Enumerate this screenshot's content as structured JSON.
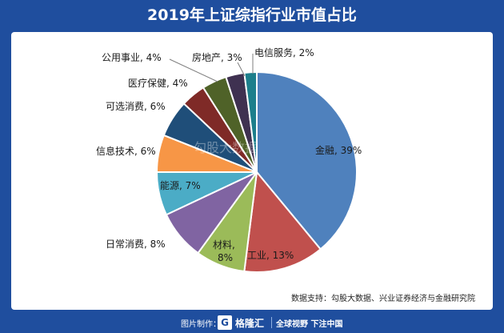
{
  "header": {
    "title": "2019年上证综指行业市值占比"
  },
  "chart_data": {
    "type": "pie",
    "title": "2019年上证综指行业市值占比",
    "slices": [
      {
        "label": "金融",
        "value": 39,
        "text": "金融, 39%",
        "color": "#4f81bd"
      },
      {
        "label": "工业",
        "value": 13,
        "text": "工业, 13%",
        "color": "#c0504d"
      },
      {
        "label": "材料",
        "value": 8,
        "text": "材料, 8%",
        "color": "#9bbb59"
      },
      {
        "label": "日常消费",
        "value": 8,
        "text": "日常消费, 8%",
        "color": "#8064a2"
      },
      {
        "label": "能源",
        "value": 7,
        "text": "能源, 7%",
        "color": "#4bacc6"
      },
      {
        "label": "信息技术",
        "value": 6,
        "text": "信息技术, 6%",
        "color": "#f79646"
      },
      {
        "label": "可选消费",
        "value": 6,
        "text": "可选消费, 6%",
        "color": "#1f4e79"
      },
      {
        "label": "医疗保健",
        "value": 4,
        "text": "医疗保健, 4%",
        "color": "#7f2a27"
      },
      {
        "label": "公用事业",
        "value": 4,
        "text": "公用事业, 4%",
        "color": "#4f6228"
      },
      {
        "label": "房地产",
        "value": 3,
        "text": "房地产, 3%",
        "color": "#3f3151"
      },
      {
        "label": "电信服务",
        "value": 2,
        "text": "电信服务, 2%",
        "color": "#1d7f8c"
      }
    ],
    "watermark": "勾股大数据"
  },
  "source": {
    "text": "数据支持：勾股大数据、兴业证券经济与金融研究院"
  },
  "footer": {
    "made_by": "图片制作：",
    "logo_char": "G",
    "brand": "格隆汇",
    "slogan": "全球视野 下注中国"
  }
}
